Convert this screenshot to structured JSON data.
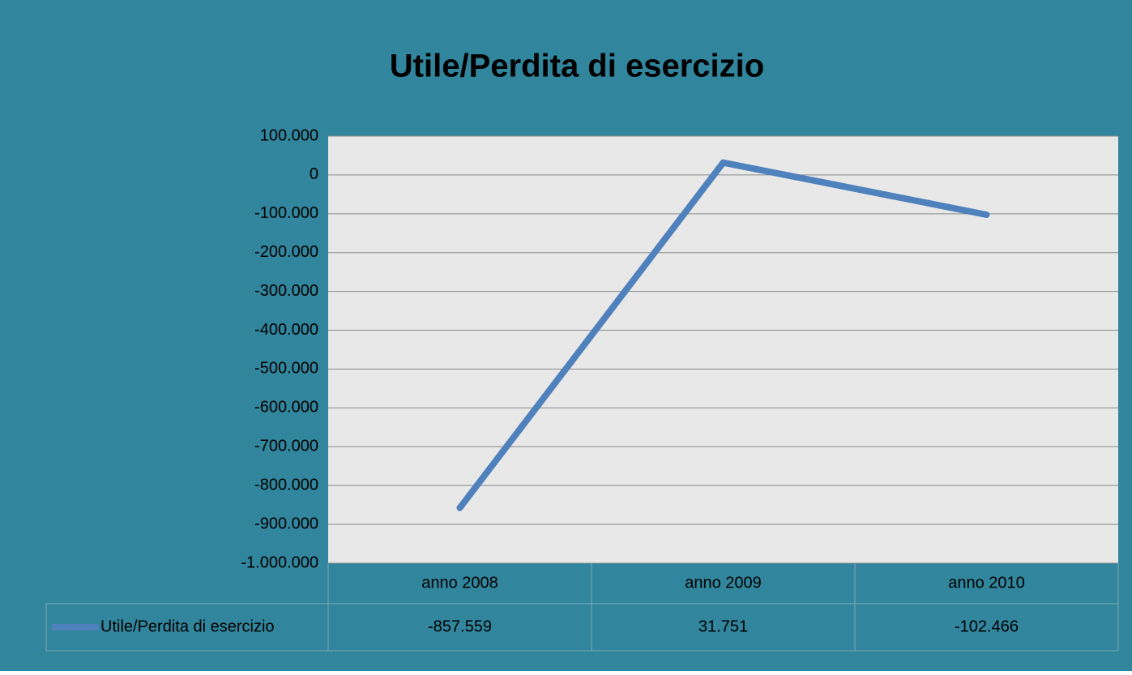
{
  "chart_data": {
    "type": "line",
    "title": "Utile/Perdita di esercizio",
    "categories": [
      "anno 2008",
      "anno 2009",
      "anno 2010"
    ],
    "series": [
      {
        "name": "Utile/Perdita di esercizio",
        "color": "#4f81bd",
        "values": [
          -857559,
          31751,
          -102466
        ],
        "value_labels": [
          "-857.559",
          "31.751",
          "-102.466"
        ]
      }
    ],
    "ylim": [
      -1000000,
      100000
    ],
    "yticks": [
      {
        "value": 100000,
        "label": "100.000"
      },
      0,
      {
        "value": -100000,
        "label": "-100.000"
      },
      {
        "value": -200000,
        "label": "-200.000"
      },
      {
        "value": -300000,
        "label": "-300.000"
      },
      {
        "value": -400000,
        "label": "-400.000"
      },
      {
        "value": -500000,
        "label": "-500.000"
      },
      {
        "value": -600000,
        "label": "-600.000"
      },
      {
        "value": -700000,
        "label": "-700.000"
      },
      {
        "value": -800000,
        "label": "-800.000"
      },
      {
        "value": -900000,
        "label": "-900.000"
      },
      {
        "value": -1000000,
        "label": "-1.000.000"
      }
    ],
    "grid": true,
    "data_table": true
  }
}
